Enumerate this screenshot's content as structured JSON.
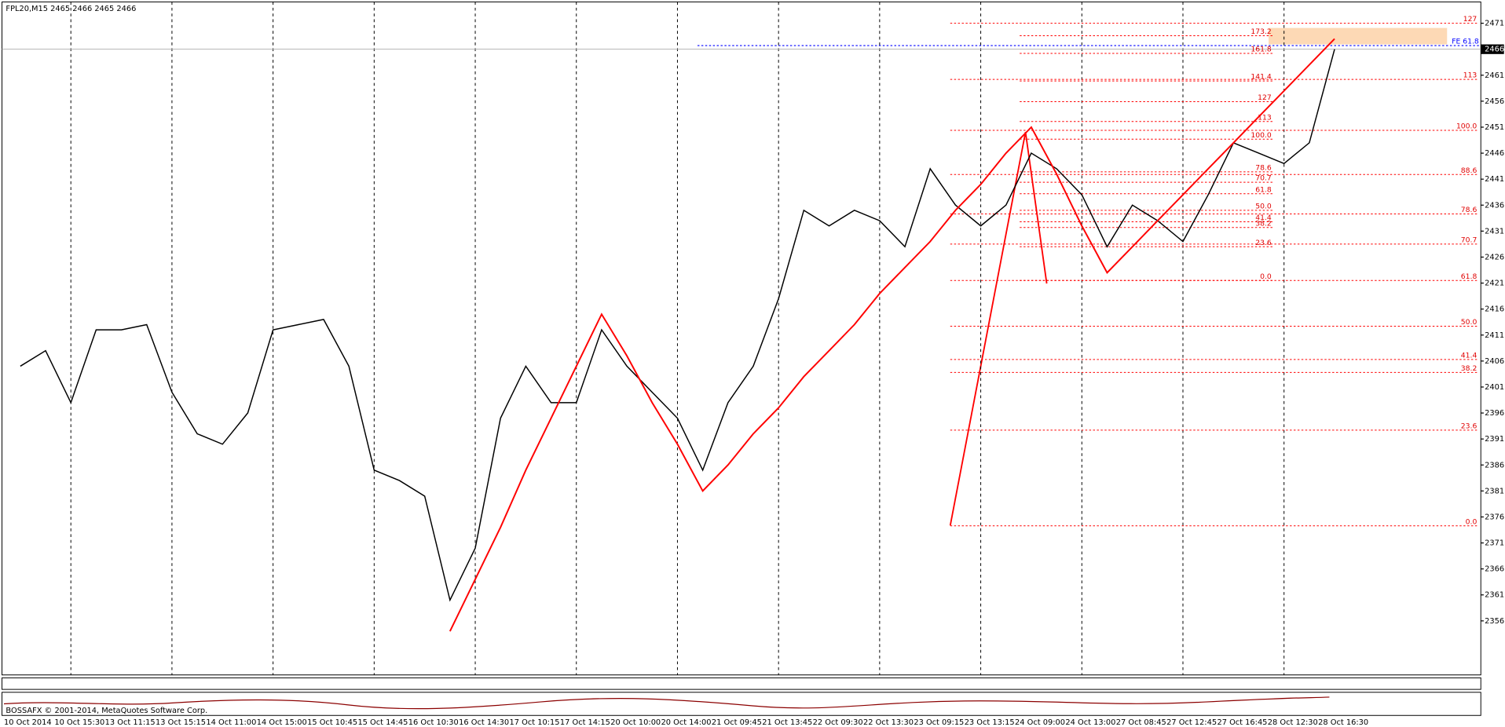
{
  "header": "FPL20,M15  2465 2466 2465 2466",
  "footer": "BOSSAFX © 2001-2014, MetaQuotes Software Corp.",
  "chart_data": {
    "type": "line",
    "categories": [
      "10 Oct 2014",
      null,
      "10 Oct 15:30",
      null,
      "13 Oct 11:15",
      null,
      "13 Oct 15:15",
      null,
      "14 Oct 11:00",
      null,
      "14 Oct 15:00",
      null,
      "15 Oct 10:45",
      null,
      "15 Oct 14:45",
      null,
      "16 Oct 10:30",
      null,
      "16 Oct 14:30",
      null,
      "17 Oct 10:15",
      null,
      "17 Oct 14:15",
      null,
      "20 Oct 10:00",
      null,
      "20 Oct 14:00",
      null,
      "21 Oct 09:45",
      null,
      "21 Oct 13:45",
      null,
      "22 Oct 09:30",
      null,
      "22 Oct 13:30",
      null,
      "23 Oct 09:15",
      null,
      "23 Oct 13:15",
      null,
      "24 Oct 09:00",
      null,
      "24 Oct 13:00",
      null,
      "27 Oct 08:45",
      null,
      "27 Oct 12:45",
      null,
      "27 Oct 16:45",
      null,
      "28 Oct 12:30",
      null,
      "28 Oct 16:30"
    ],
    "series": [
      {
        "color": "#000000",
        "values": [
          2405,
          2408,
          2398,
          2412,
          2412,
          2413,
          2400,
          2392,
          2390,
          2396,
          2412,
          2413,
          2414,
          2405,
          2385,
          2383,
          2380,
          2360,
          2370,
          2395,
          2405,
          2398,
          2398,
          2412,
          2405,
          2400,
          2395,
          2385,
          2398,
          2405,
          2418,
          2435,
          2432,
          2435,
          2433,
          2428,
          2443,
          2436,
          2432,
          2436,
          2446,
          2443,
          2438,
          2428,
          2436,
          2433,
          2429,
          2438,
          2448,
          2446,
          2444,
          2448,
          2466
        ]
      },
      {
        "color": "#ff0000",
        "values": [
          null,
          null,
          null,
          null,
          null,
          null,
          null,
          null,
          null,
          null,
          null,
          null,
          null,
          null,
          null,
          null,
          null,
          2354,
          2364,
          2374,
          2385,
          2395,
          2405,
          2415,
          2407,
          2398,
          2390,
          2381,
          2386,
          2392,
          2397,
          2403,
          2408,
          2413,
          2419,
          2424,
          2429,
          2435,
          2440,
          2446,
          2451,
          2442,
          2432,
          2423,
          2428,
          2433,
          2438,
          2443,
          2448,
          2453,
          2458,
          2463,
          2468
        ]
      }
    ],
    "ylim": [
      2345.6,
      2475.1
    ],
    "yticks": [
      2356,
      2361,
      2366,
      2371,
      2376,
      2381,
      2386,
      2391,
      2396,
      2401,
      2406,
      2411,
      2416,
      2421,
      2426,
      2431,
      2436,
      2441,
      2446,
      2451,
      2456,
      2461,
      2466,
      2471
    ],
    "current_price": 2466,
    "fe_level": {
      "label": "FE 61.8",
      "price": 2466.7
    },
    "fib_outer": [
      {
        "label": "127",
        "price": 2471.0
      },
      {
        "label": "113",
        "price": 2460.2
      },
      {
        "label": "100.0",
        "price": 2450.4
      },
      {
        "label": "88.6",
        "price": 2441.9
      },
      {
        "label": "78.6",
        "price": 2434.3
      },
      {
        "label": "70.7",
        "price": 2428.5
      },
      {
        "label": "61.8",
        "price": 2421.5
      },
      {
        "label": "50.0",
        "price": 2412.7
      },
      {
        "label": "41.4",
        "price": 2406.3
      },
      {
        "label": "38.2",
        "price": 2403.8
      },
      {
        "label": "23.6",
        "price": 2392.7
      },
      {
        "label": "0.0",
        "price": 2374.3
      }
    ],
    "fib_inner": [
      {
        "label": "173.2",
        "price": 2468.6
      },
      {
        "label": "161.8",
        "price": 2465.2
      },
      {
        "label": "141.4",
        "price": 2459.9
      },
      {
        "label": "127",
        "price": 2455.9
      },
      {
        "label": "113",
        "price": 2452.1
      },
      {
        "label": "100.0",
        "price": 2448.7
      },
      {
        "label": "78.6",
        "price": 2442.4
      },
      {
        "label": "70.7",
        "price": 2440.4
      },
      {
        "label": "61.8",
        "price": 2438.2
      },
      {
        "label": "50.0",
        "price": 2435.0
      },
      {
        "label": "41.4",
        "price": 2432.8
      },
      {
        "label": "38.2",
        "price": 2431.7
      },
      {
        "label": "23.6",
        "price": 2428.0
      },
      {
        "label": "0.0",
        "price": 2421.5
      }
    ]
  }
}
